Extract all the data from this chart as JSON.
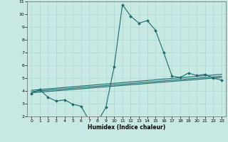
{
  "xlabel": "Humidex (Indice chaleur)",
  "xlim": [
    -0.5,
    23.5
  ],
  "ylim": [
    2,
    11
  ],
  "yticks": [
    2,
    3,
    4,
    5,
    6,
    7,
    8,
    9,
    10,
    11
  ],
  "xticks": [
    0,
    1,
    2,
    3,
    4,
    5,
    6,
    7,
    8,
    9,
    10,
    11,
    12,
    13,
    14,
    15,
    16,
    17,
    18,
    19,
    20,
    21,
    22,
    23
  ],
  "background_color": "#c8e8e4",
  "grid_color": "#aad8d4",
  "line_color": "#1a6b6b",
  "line1": {
    "x": [
      0,
      1,
      2,
      3,
      4,
      5,
      6,
      7,
      8,
      9,
      10,
      11,
      12,
      13,
      14,
      15,
      16,
      17,
      18,
      19,
      20,
      21,
      22,
      23
    ],
    "y": [
      3.8,
      4.1,
      3.5,
      3.2,
      3.3,
      2.95,
      2.8,
      1.65,
      1.6,
      2.7,
      5.9,
      10.75,
      9.85,
      9.3,
      9.5,
      8.75,
      7.0,
      5.15,
      5.05,
      5.4,
      5.2,
      5.3,
      5.0,
      4.85
    ]
  },
  "line2": {
    "x": [
      0,
      23
    ],
    "y": [
      3.85,
      5.05
    ]
  },
  "line3": {
    "x": [
      0,
      23
    ],
    "y": [
      3.95,
      5.15
    ]
  },
  "line4": {
    "x": [
      0,
      23
    ],
    "y": [
      4.05,
      5.3
    ]
  }
}
